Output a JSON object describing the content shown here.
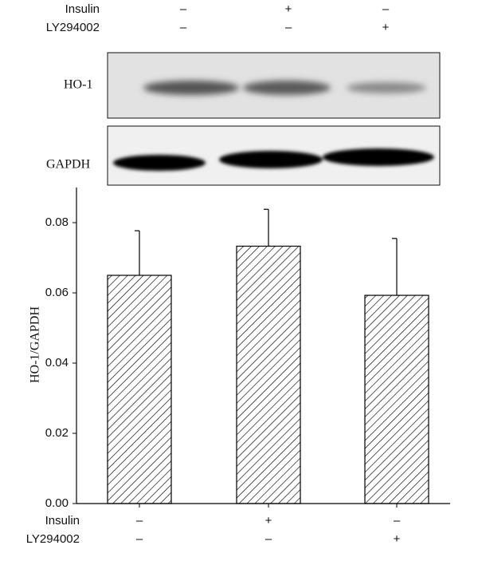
{
  "blot": {
    "conditions": [
      {
        "name": "Insulin",
        "values": [
          "–",
          "+",
          "–"
        ]
      },
      {
        "name": "LY294002",
        "values": [
          "–",
          "–",
          "+"
        ]
      }
    ],
    "rows": [
      "HO-1",
      "GAPDH"
    ]
  },
  "chart_data": {
    "type": "bar",
    "ylabel": "HO-1/GAPDH",
    "values": [
      0.065,
      0.0733,
      0.0593
    ],
    "errors": [
      0.0127,
      0.0105,
      0.0162
    ],
    "color": "#000000",
    "hatch": true,
    "ylim": [
      0,
      0.09
    ],
    "yticks": [
      {
        "value": 0,
        "label": "0.00"
      },
      0.02,
      0.04,
      0.06,
      0.08
    ],
    "conditions": [
      {
        "name": "Insulin",
        "values": [
          "–",
          "+",
          "–"
        ]
      },
      {
        "name": "LY294002",
        "values": [
          "–",
          "–",
          "+"
        ]
      }
    ]
  }
}
